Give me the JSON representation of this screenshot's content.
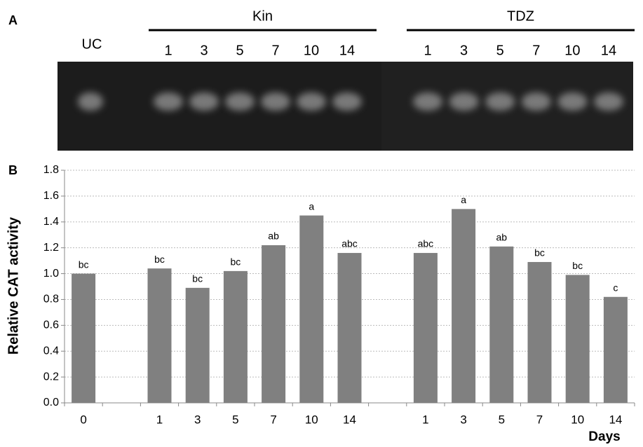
{
  "gel": {
    "panel_label": "A",
    "control_lane": "UC",
    "groups": [
      {
        "name": "Kin",
        "lanes": [
          "1",
          "3",
          "5",
          "7",
          "10",
          "14"
        ]
      },
      {
        "name": "TDZ",
        "lanes": [
          "1",
          "3",
          "5",
          "7",
          "10",
          "14"
        ]
      }
    ]
  },
  "chart_data": {
    "type": "bar",
    "panel_label": "B",
    "y_label": "Relative CAT activity",
    "x_label": "Days",
    "categories": [
      "0",
      null,
      "1",
      "3",
      "5",
      "7",
      "10",
      "14",
      null,
      "1",
      "3",
      "5",
      "7",
      "10",
      "14"
    ],
    "values": [
      1.0,
      null,
      1.04,
      0.89,
      1.02,
      1.22,
      1.45,
      1.16,
      null,
      1.16,
      1.5,
      1.21,
      1.09,
      0.99,
      0.82
    ],
    "significance": [
      "bc",
      null,
      "bc",
      "bc",
      "bc",
      "ab",
      "a",
      "abc",
      null,
      "abc",
      "a",
      "ab",
      "bc",
      "bc",
      "c"
    ],
    "color": "#808080",
    "ylim": [
      0,
      1.8
    ],
    "yticks": [
      {
        "value": 0,
        "label": "0.0"
      },
      0.2,
      0.4,
      0.6,
      0.8,
      {
        "value": 1,
        "label": "1.0"
      },
      1.2,
      1.4,
      1.6,
      1.8
    ],
    "grid": true
  }
}
